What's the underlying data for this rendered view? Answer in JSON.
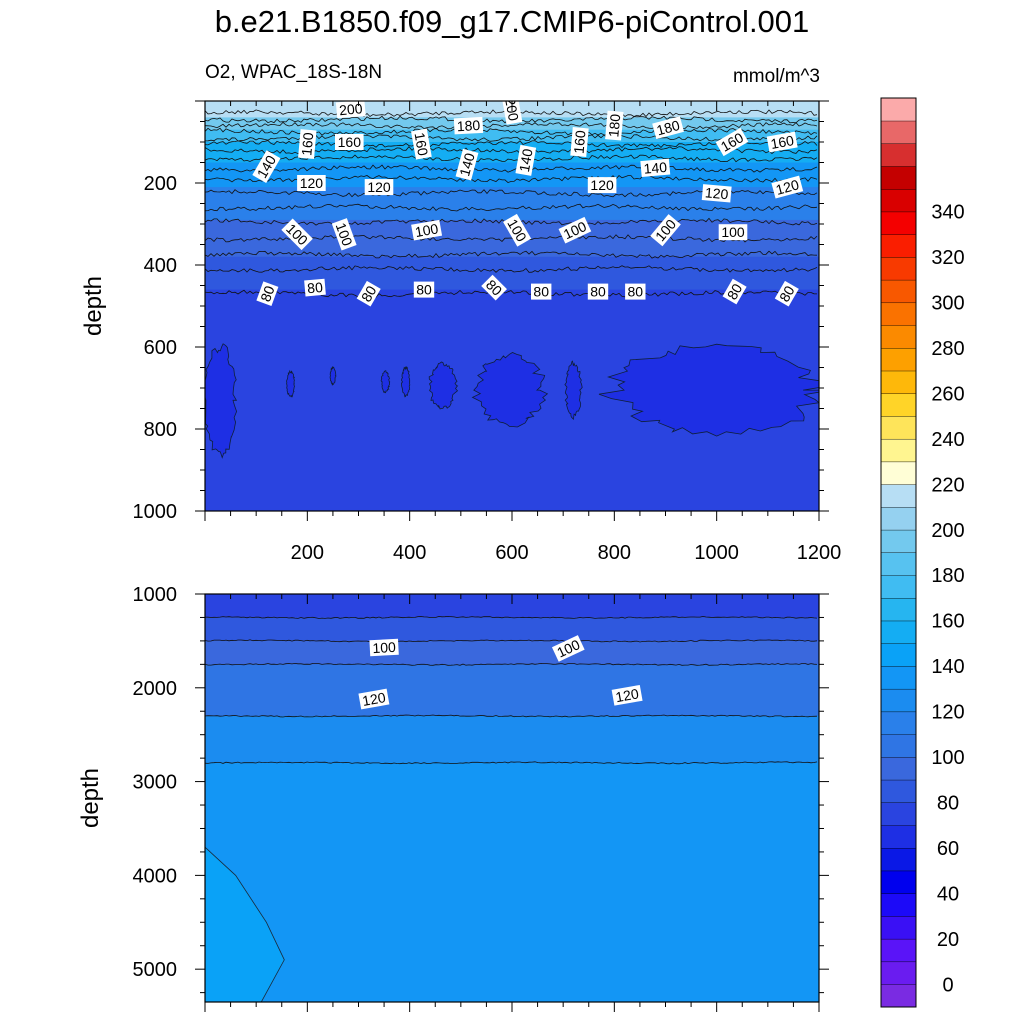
{
  "chart_data": {
    "type": "heatmap",
    "title": "b.e21.B1850.f09_g17.CMIP6-piControl.001",
    "subtitle_left": "O2, WPAC_18S-18N",
    "subtitle_right": "mmol/m^3",
    "panels": [
      {
        "name": "upper",
        "ylabel": "depth",
        "xlim": [
          0,
          1200
        ],
        "ylim": [
          0,
          1000
        ],
        "xticks": [
          200,
          400,
          600,
          800,
          1000,
          1200
        ],
        "xtick_labels": [
          "200",
          "400",
          "600",
          "800",
          "1000",
          "1200"
        ],
        "yticks": [
          200,
          400,
          600,
          800,
          1000
        ],
        "ytick_labels": [
          "200",
          "400",
          "600",
          "800",
          "1000"
        ],
        "bands": [
          {
            "top": 0,
            "bottom": 40,
            "value": 210
          },
          {
            "top": 40,
            "bottom": 70,
            "value": 190
          },
          {
            "top": 70,
            "bottom": 100,
            "value": 170
          },
          {
            "top": 100,
            "bottom": 150,
            "value": 150
          },
          {
            "top": 150,
            "bottom": 210,
            "value": 130
          },
          {
            "top": 210,
            "bottom": 290,
            "value": 110
          },
          {
            "top": 290,
            "bottom": 380,
            "value": 95
          },
          {
            "top": 380,
            "bottom": 460,
            "value": 85
          },
          {
            "top": 460,
            "bottom": 1000,
            "value": 75
          }
        ],
        "contour_depths": [
          30,
          45,
          60,
          75,
          90,
          105,
          120,
          140,
          165,
          190,
          225,
          260,
          295,
          335,
          375,
          410,
          470
        ],
        "low_patches": [
          {
            "x0": 0,
            "x1": 60,
            "top": 600,
            "bottom": 860
          },
          {
            "x0": 160,
            "x1": 175,
            "top": 660,
            "bottom": 720
          },
          {
            "x0": 245,
            "x1": 255,
            "top": 650,
            "bottom": 690
          },
          {
            "x0": 345,
            "x1": 360,
            "top": 660,
            "bottom": 710
          },
          {
            "x0": 385,
            "x1": 400,
            "top": 650,
            "bottom": 720
          },
          {
            "x0": 440,
            "x1": 490,
            "top": 640,
            "bottom": 750
          },
          {
            "x0": 530,
            "x1": 660,
            "top": 620,
            "bottom": 790
          },
          {
            "x0": 705,
            "x1": 735,
            "top": 640,
            "bottom": 770
          },
          {
            "x0": 800,
            "x1": 1200,
            "top": 600,
            "bottom": 810
          }
        ],
        "labels": [
          {
            "text": "200",
            "x": 285,
            "y": 20,
            "angle": -5
          },
          {
            "text": "200",
            "x": 600,
            "y": 20,
            "angle": 80
          },
          {
            "text": "180",
            "x": 515,
            "y": 60,
            "angle": -3
          },
          {
            "text": "180",
            "x": 800,
            "y": 60,
            "angle": -85
          },
          {
            "text": "180",
            "x": 905,
            "y": 65,
            "angle": -15
          },
          {
            "text": "160",
            "x": 200,
            "y": 105,
            "angle": -85
          },
          {
            "text": "160",
            "x": 282,
            "y": 100,
            "angle": 0
          },
          {
            "text": "160",
            "x": 423,
            "y": 105,
            "angle": 80
          },
          {
            "text": "160",
            "x": 732,
            "y": 100,
            "angle": -85
          },
          {
            "text": "160",
            "x": 1030,
            "y": 100,
            "angle": -30
          },
          {
            "text": "160",
            "x": 1128,
            "y": 100,
            "angle": -10
          },
          {
            "text": "140",
            "x": 120,
            "y": 160,
            "angle": -60
          },
          {
            "text": "140",
            "x": 512,
            "y": 155,
            "angle": -75
          },
          {
            "text": "140",
            "x": 627,
            "y": 145,
            "angle": -80
          },
          {
            "text": "140",
            "x": 880,
            "y": 163,
            "angle": -5
          },
          {
            "text": "120",
            "x": 208,
            "y": 200,
            "angle": 0
          },
          {
            "text": "120",
            "x": 340,
            "y": 210,
            "angle": 0
          },
          {
            "text": "120",
            "x": 776,
            "y": 205,
            "angle": 0
          },
          {
            "text": "120",
            "x": 1000,
            "y": 225,
            "angle": 5
          },
          {
            "text": "120",
            "x": 1138,
            "y": 210,
            "angle": -15
          },
          {
            "text": "100",
            "x": 180,
            "y": 325,
            "angle": 45
          },
          {
            "text": "100",
            "x": 272,
            "y": 325,
            "angle": 70
          },
          {
            "text": "100",
            "x": 433,
            "y": 315,
            "angle": -10
          },
          {
            "text": "100",
            "x": 610,
            "y": 315,
            "angle": 60
          },
          {
            "text": "100",
            "x": 723,
            "y": 315,
            "angle": -25
          },
          {
            "text": "100",
            "x": 900,
            "y": 315,
            "angle": -50
          },
          {
            "text": "100",
            "x": 1032,
            "y": 320,
            "angle": 0
          },
          {
            "text": "80",
            "x": 122,
            "y": 470,
            "angle": -70
          },
          {
            "text": "80",
            "x": 215,
            "y": 455,
            "angle": -5
          },
          {
            "text": "80",
            "x": 320,
            "y": 470,
            "angle": -60
          },
          {
            "text": "80",
            "x": 428,
            "y": 460,
            "angle": 0
          },
          {
            "text": "80",
            "x": 565,
            "y": 455,
            "angle": 45
          },
          {
            "text": "80",
            "x": 657,
            "y": 465,
            "angle": 0
          },
          {
            "text": "80",
            "x": 768,
            "y": 465,
            "angle": 0
          },
          {
            "text": "80",
            "x": 841,
            "y": 465,
            "angle": 0
          },
          {
            "text": "80",
            "x": 1035,
            "y": 465,
            "angle": -60
          },
          {
            "text": "80",
            "x": 1137,
            "y": 470,
            "angle": -60
          }
        ]
      },
      {
        "name": "lower",
        "ylabel": "depth",
        "xlim": [
          0,
          1200
        ],
        "ylim": [
          1000,
          5350
        ],
        "xticks": [
          200,
          400,
          600,
          800,
          1000,
          1200
        ],
        "yticks": [
          1000,
          2000,
          3000,
          4000,
          5000
        ],
        "ytick_labels": [
          "1000",
          "2000",
          "3000",
          "4000",
          "5000"
        ],
        "bands": [
          {
            "top": 1000,
            "bottom": 1250,
            "value": 78
          },
          {
            "top": 1250,
            "bottom": 1500,
            "value": 88
          },
          {
            "top": 1500,
            "bottom": 1750,
            "value": 98
          },
          {
            "top": 1750,
            "bottom": 2300,
            "value": 108
          },
          {
            "top": 2300,
            "bottom": 2800,
            "value": 125
          },
          {
            "top": 2800,
            "bottom": 5350,
            "value": 135
          }
        ],
        "contour_depths": [
          1250,
          1500,
          1750,
          2300,
          2800
        ],
        "high_patch": [
          [
            0,
            3700
          ],
          [
            60,
            4000
          ],
          [
            120,
            4500
          ],
          [
            155,
            4900
          ],
          [
            110,
            5350
          ],
          [
            0,
            5350
          ]
        ],
        "labels": [
          {
            "text": "100",
            "x": 350,
            "y": 1570,
            "angle": -3
          },
          {
            "text": "100",
            "x": 710,
            "y": 1580,
            "angle": -25
          },
          {
            "text": "120",
            "x": 330,
            "y": 2120,
            "angle": -10
          },
          {
            "text": "120",
            "x": 825,
            "y": 2080,
            "angle": -10
          }
        ]
      }
    ],
    "colorbar": {
      "ticks": [
        0,
        20,
        40,
        60,
        80,
        100,
        120,
        140,
        160,
        180,
        200,
        220,
        240,
        260,
        280,
        300,
        320,
        340
      ],
      "tick_labels": [
        "0",
        "20",
        "40",
        "60",
        "80",
        "100",
        "120",
        "140",
        "160",
        "180",
        "200",
        "220",
        "240",
        "260",
        "280",
        "300",
        "320",
        "340"
      ],
      "levels": 37,
      "level_step": 10,
      "level_min": -10,
      "colors": [
        "#7a2be2",
        "#6a1cf0",
        "#5a14f8",
        "#3a10f5",
        "#1c0af8",
        "#0000ee",
        "#0a18e6",
        "#1e2fe4",
        "#2a44e0",
        "#2f58de",
        "#3a68dd",
        "#2f75e4",
        "#2a80ea",
        "#1b8cf0",
        "#1396f5",
        "#0aa2f7",
        "#14adf3",
        "#26b5f0",
        "#40bcf2",
        "#57c2f0",
        "#73c9ee",
        "#95d1f0",
        "#b7def4",
        "#fffed6",
        "#fff590",
        "#fee45a",
        "#ffd428",
        "#feb80a",
        "#fda000",
        "#fb8a00",
        "#fa7200",
        "#f85800",
        "#f83a00",
        "#fa1e00",
        "#f40000",
        "#d90000",
        "#c40000",
        "#d72f2f",
        "#e86868",
        "#fbaaaa"
      ]
    }
  }
}
